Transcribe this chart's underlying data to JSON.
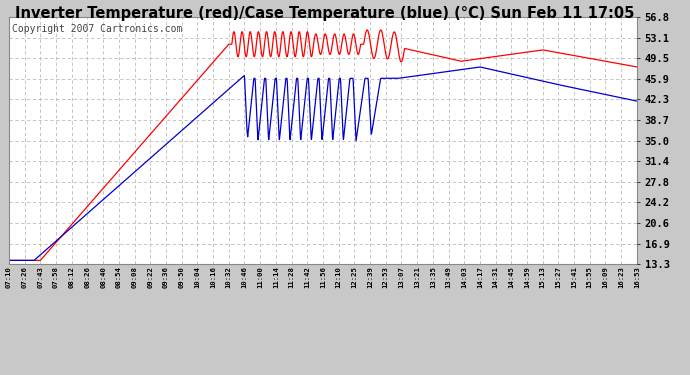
{
  "title": "Inverter Temperature (red)/Case Temperature (blue) (°C) Sun Feb 11 17:05",
  "copyright": "Copyright 2007 Cartronics.com",
  "ylabel_right_ticks": [
    13.3,
    16.9,
    20.6,
    24.2,
    27.8,
    31.4,
    35.0,
    38.7,
    42.3,
    45.9,
    49.5,
    53.1,
    56.8
  ],
  "ymin": 13.3,
  "ymax": 56.8,
  "xtick_labels": [
    "07:10",
    "07:26",
    "07:43",
    "07:58",
    "08:12",
    "08:26",
    "08:40",
    "08:54",
    "09:08",
    "09:22",
    "09:36",
    "09:50",
    "10:04",
    "10:16",
    "10:32",
    "10:46",
    "11:00",
    "11:14",
    "11:28",
    "11:42",
    "11:56",
    "12:10",
    "12:25",
    "12:39",
    "12:53",
    "13:07",
    "13:21",
    "13:35",
    "13:49",
    "14:03",
    "14:17",
    "14:31",
    "14:45",
    "14:59",
    "15:13",
    "15:27",
    "15:41",
    "15:55",
    "16:09",
    "16:23",
    "16:53"
  ],
  "bg_color": "#c8c8c8",
  "plot_bg_color": "#ffffff",
  "grid_color": "#bbbbbb",
  "red_color": "#ff0000",
  "blue_color": "#0000cc",
  "title_fontsize": 10.5,
  "copyright_fontsize": 7
}
